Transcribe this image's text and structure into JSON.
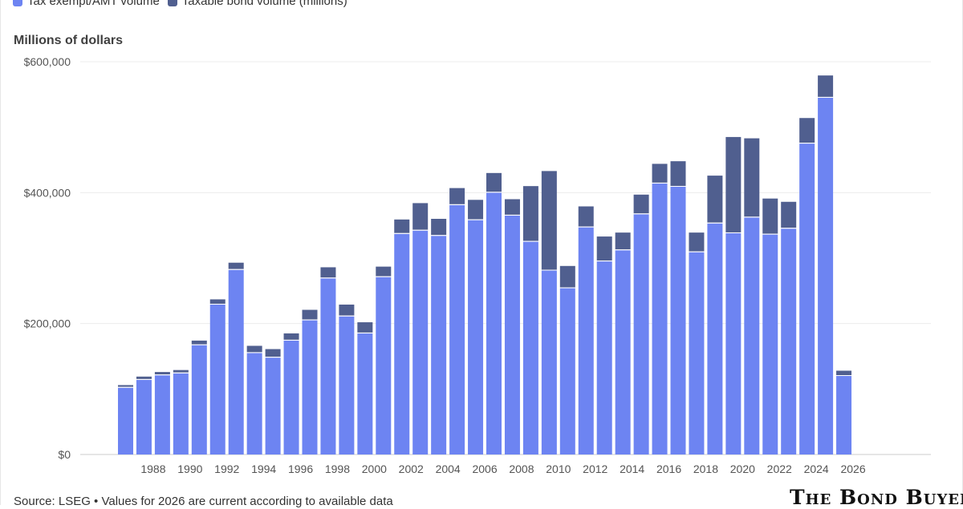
{
  "legend": [
    {
      "label": "Tax exempt/AMT volume",
      "color": "#6d84f2"
    },
    {
      "label": "Taxable bond volume (millions)",
      "color": "#505f8f"
    }
  ],
  "y_unit_label": "Millions of dollars",
  "footer": {
    "source": "Source: LSEG • Values for 2026 are current according to available data",
    "brand": "The Bond Buyer"
  },
  "chart_data": {
    "type": "bar",
    "stacked": true,
    "title": "",
    "xlabel": "",
    "ylabel": "Millions of dollars",
    "ylim": [
      0,
      600000
    ],
    "y_ticks": [
      {
        "value": 0,
        "label": "$0"
      },
      {
        "value": 200000,
        "label": "$200,000"
      },
      {
        "value": 400000,
        "label": "$400,000"
      },
      {
        "value": 600000,
        "label": "$600,000"
      }
    ],
    "categories": [
      "1987",
      "1988",
      "1989",
      "1990",
      "1991",
      "1992",
      "1993",
      "1994",
      "1995",
      "1996",
      "1997",
      "1998",
      "1999",
      "2000",
      "2001",
      "2002",
      "2003",
      "2004",
      "2005",
      "2006",
      "2007",
      "2008",
      "2009",
      "2010",
      "2011",
      "2012",
      "2013",
      "2014",
      "2015",
      "2016",
      "2017",
      "2018",
      "2019",
      "2020",
      "2021",
      "2022",
      "2023",
      "2024",
      "2025",
      "2026"
    ],
    "x_tick_labels": [
      "1988",
      "1990",
      "1992",
      "1994",
      "1996",
      "1998",
      "2000",
      "2002",
      "2004",
      "2006",
      "2008",
      "2010",
      "2012",
      "2014",
      "2016",
      "2018",
      "2020",
      "2022",
      "2024",
      "2026"
    ],
    "series": [
      {
        "name": "Tax exempt/AMT volume",
        "color": "#6d84f2",
        "values": [
          102000,
          114000,
          121000,
          124000,
          167000,
          229000,
          282000,
          155000,
          148000,
          174000,
          205000,
          269000,
          211000,
          185000,
          271000,
          337000,
          342000,
          334000,
          381000,
          358000,
          400000,
          365000,
          325000,
          281000,
          254000,
          347000,
          295000,
          312000,
          367000,
          414000,
          409000,
          309000,
          353000,
          338000,
          362000,
          336000,
          345000,
          475000,
          545000,
          120000
        ]
      },
      {
        "name": "Taxable bond volume (millions)",
        "color": "#505f8f",
        "values": [
          4000,
          5000,
          5000,
          5000,
          7000,
          8000,
          11000,
          11000,
          13000,
          11000,
          16000,
          17000,
          18000,
          17000,
          16000,
          22000,
          42000,
          26000,
          26000,
          31000,
          30000,
          25000,
          85000,
          152000,
          34000,
          32000,
          38000,
          27000,
          30000,
          30000,
          39000,
          30000,
          73000,
          147000,
          121000,
          55000,
          41000,
          39000,
          34000,
          8000
        ]
      }
    ],
    "grid": true,
    "legend_position": "top-left"
  }
}
